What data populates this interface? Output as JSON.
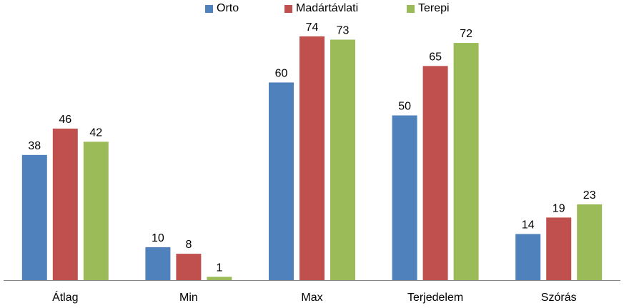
{
  "chart_data": {
    "type": "bar",
    "categories": [
      "Átlag",
      "Min",
      "Max",
      "Terjedelem",
      "Szórás"
    ],
    "series": [
      {
        "name": "Orto",
        "color": "#4f81bd",
        "values": [
          38,
          10,
          60,
          50,
          14
        ]
      },
      {
        "name": "Madártávlati",
        "color": "#c0504d",
        "values": [
          46,
          8,
          74,
          65,
          19
        ]
      },
      {
        "name": "Terepi",
        "color": "#9bbb59",
        "values": [
          42,
          1,
          73,
          72,
          23
        ]
      }
    ],
    "ylim": [
      0,
      80
    ],
    "grid": false,
    "legend_position": "top-center",
    "data_labels": true
  }
}
